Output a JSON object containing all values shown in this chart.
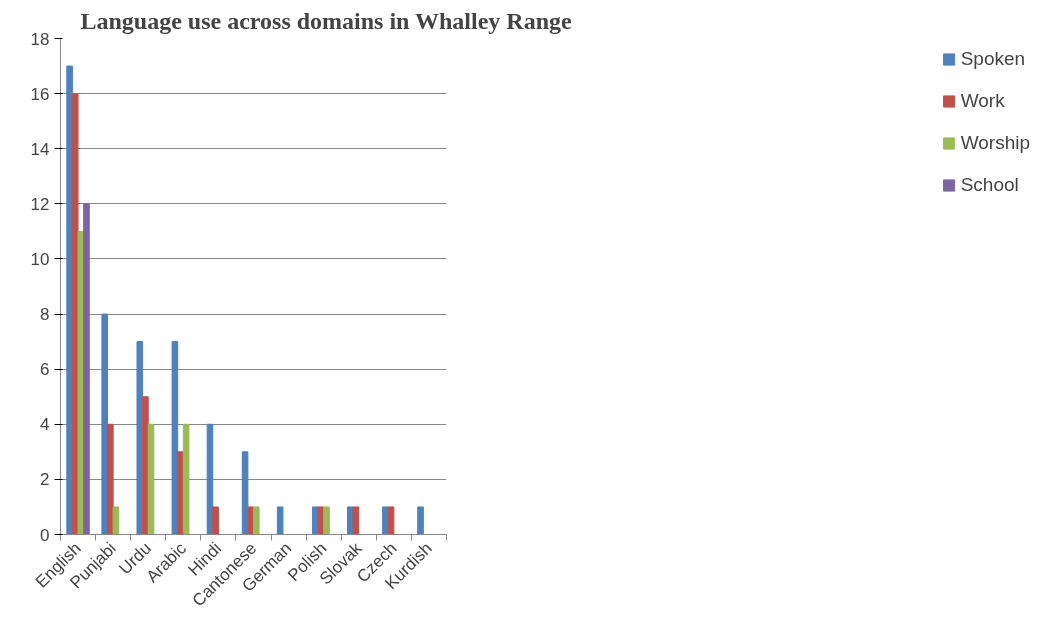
{
  "chart_data": {
    "type": "bar",
    "title": "Language use across domains in Whalley Range",
    "categories": [
      "English",
      "Punjabi",
      "Urdu",
      "Arabic",
      "Hindi",
      "Cantonese",
      "German",
      "Polish",
      "Slovak",
      "Czech",
      "Kurdish"
    ],
    "series": [
      {
        "name": "Spoken",
        "color": "#4f81bd",
        "values": [
          17,
          8,
          7,
          7,
          4,
          3,
          1,
          1,
          1,
          1,
          1
        ]
      },
      {
        "name": "Work",
        "color": "#c0504d",
        "values": [
          16,
          4,
          5,
          3,
          1,
          1,
          0,
          1,
          1,
          1,
          0
        ]
      },
      {
        "name": "Worship",
        "color": "#9bbb59",
        "values": [
          11,
          1,
          4,
          4,
          0,
          1,
          0,
          1,
          0,
          0,
          0
        ]
      },
      {
        "name": "School",
        "color": "#8064a2",
        "values": [
          12,
          0,
          0,
          0,
          0,
          0,
          0,
          0,
          0,
          0,
          0
        ]
      }
    ],
    "ylim": [
      0,
      18
    ],
    "yticks": [
      0,
      2,
      4,
      6,
      8,
      10,
      12,
      14,
      16,
      18
    ],
    "grid": "y",
    "legend": "right"
  }
}
